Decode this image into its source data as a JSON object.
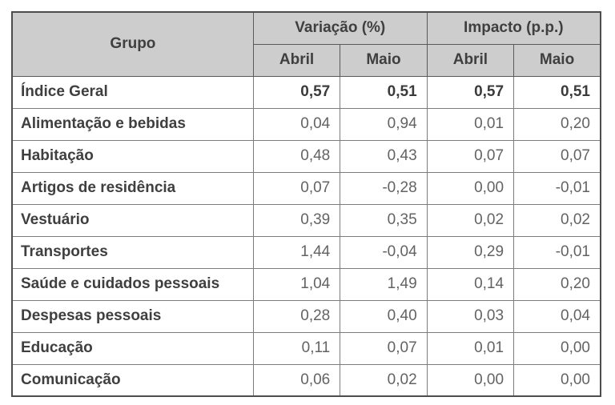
{
  "colors": {
    "header_fill": "#cdcdcd",
    "header_text": "#3f3f3f",
    "body_text": "#636363",
    "outer_border": "#4d4d4d",
    "inner_border": "#7c7c7c",
    "background": "#ffffff"
  },
  "chart_data": {
    "type": "table",
    "title": "",
    "header": {
      "group_label": "Grupo",
      "span_groups": [
        {
          "label": "Variação (%)",
          "span": 2
        },
        {
          "label": "Impacto (p.p.)",
          "span": 2
        }
      ],
      "sub_headers": [
        "Abril",
        "Maio",
        "Abril",
        "Maio"
      ]
    },
    "rows": [
      {
        "group": "Índice Geral",
        "values": [
          "0,57",
          "0,51",
          "0,57",
          "0,51"
        ],
        "bold": true
      },
      {
        "group": "Alimentação e bebidas",
        "values": [
          "0,04",
          "0,94",
          "0,01",
          "0,20"
        ],
        "bold": false
      },
      {
        "group": "Habitação",
        "values": [
          "0,48",
          "0,43",
          "0,07",
          "0,07"
        ],
        "bold": false
      },
      {
        "group": "Artigos de residência",
        "values": [
          "0,07",
          "-0,28",
          "0,00",
          "-0,01"
        ],
        "bold": false
      },
      {
        "group": "Vestuário",
        "values": [
          "0,39",
          "0,35",
          "0,02",
          "0,02"
        ],
        "bold": false
      },
      {
        "group": "Transportes",
        "values": [
          "1,44",
          "-0,04",
          "0,29",
          "-0,01"
        ],
        "bold": false
      },
      {
        "group": "Saúde e cuidados pessoais",
        "values": [
          "1,04",
          "1,49",
          "0,14",
          "0,20"
        ],
        "bold": false
      },
      {
        "group": "Despesas pessoais",
        "values": [
          "0,28",
          "0,40",
          "0,03",
          "0,04"
        ],
        "bold": false
      },
      {
        "group": "Educação",
        "values": [
          "0,11",
          "0,07",
          "0,01",
          "0,00"
        ],
        "bold": false
      },
      {
        "group": "Comunicação",
        "values": [
          "0,06",
          "0,02",
          "0,00",
          "0,00"
        ],
        "bold": false
      }
    ]
  }
}
